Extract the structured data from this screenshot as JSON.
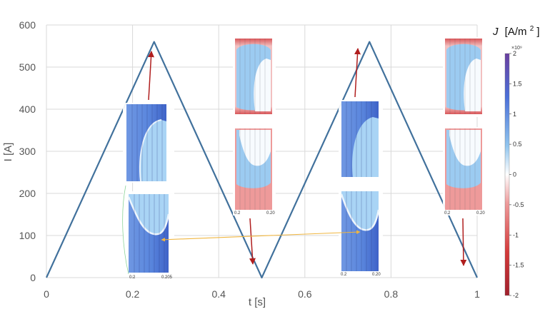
{
  "chart_data": {
    "type": "line",
    "title": "",
    "xlabel": "t [s]",
    "ylabel": "I [A]",
    "xlim": [
      0,
      1
    ],
    "ylim": [
      0,
      600
    ],
    "xticks": [
      0,
      0.2,
      0.4,
      0.6,
      0.8,
      1
    ],
    "yticks": [
      0,
      100,
      200,
      300,
      400,
      500,
      600
    ],
    "xtick_labels": [
      "0",
      "0.2",
      "0.4",
      "0.6",
      "0.8",
      "1"
    ],
    "ytick_labels": [
      "0",
      "100",
      "200",
      "300",
      "400",
      "500",
      "600"
    ],
    "grid": true,
    "series": [
      {
        "x": [
          0,
          0.25,
          0.5,
          0.75,
          1.0
        ],
        "y": [
          0,
          560,
          0,
          560,
          0
        ],
        "color": "#41719c"
      }
    ],
    "colorbar": {
      "title": "J [A/m²]",
      "title_main": "J",
      "title_unit": "[A/m",
      "title_sup": "2",
      "title_close": "]",
      "multiplier": "×10⁹",
      "min": -2,
      "max": 2,
      "ticks": [
        2,
        1.5,
        1,
        0.5,
        0,
        -0.5,
        -1,
        -1.5,
        -2
      ],
      "tick_labels": [
        "2",
        "1.5",
        "1",
        "0.5",
        "0",
        "-0.5",
        "-1",
        "-1.5",
        "-2"
      ],
      "colors": [
        "#6a3fa0",
        "#4a6fd8",
        "#8fc4ee",
        "#ffffff",
        "#ee9a9a",
        "#d43a3a",
        "#a0202c"
      ]
    },
    "insets": [
      {
        "id": "inset-1",
        "x_labels": [
          "0.2",
          "0.205"
        ]
      },
      {
        "id": "inset-2",
        "x_labels": [
          "0.2",
          "0.20"
        ]
      },
      {
        "id": "inset-3",
        "x_labels": [
          "0.2",
          "0.20"
        ]
      },
      {
        "id": "inset-4",
        "x_labels": [
          "0.2",
          "0.20"
        ]
      }
    ],
    "annotations": {
      "arrow_color": "#b01e1e",
      "link_color": "#f0b640"
    }
  }
}
